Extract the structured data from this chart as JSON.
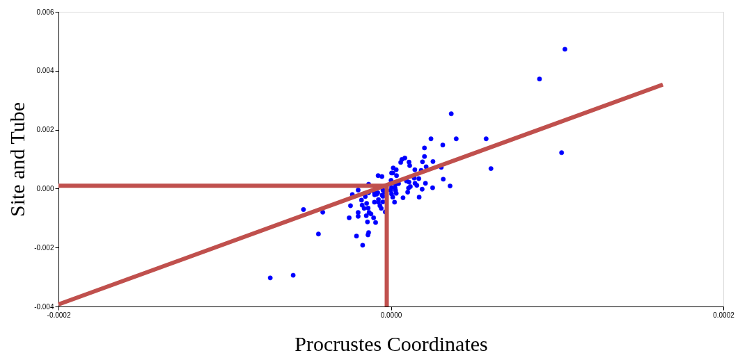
{
  "chart_data": {
    "type": "scatter",
    "xlabel": "Procrustes Coordinates",
    "ylabel": "Site and Tube",
    "xlim": [
      -0.0002,
      0.0002
    ],
    "ylim": [
      -0.004,
      0.006
    ],
    "xticks": [
      {
        "value": -0.0002,
        "label": "-0.0002"
      },
      {
        "value": 0,
        "label": "0.0000"
      },
      {
        "value": 0.0002,
        "label": "0.0002"
      }
    ],
    "yticks": [
      {
        "value": -0.004,
        "label": "-0.004"
      },
      {
        "value": -0.002,
        "label": "-0.002"
      },
      {
        "value": 0,
        "label": "0.000"
      },
      {
        "value": 0.002,
        "label": "0.002"
      },
      {
        "value": 0.004,
        "label": "0.004"
      },
      {
        "value": 0.006,
        "label": "0.006"
      }
    ],
    "grid": false,
    "series": [
      {
        "type": "scatter",
        "color": "#0000ff",
        "marker": "circle",
        "x": [
          3.63e-05,
          2.41e-05,
          3.93e-05,
          5.73e-05,
          3.12e-05,
          2.02e-05,
          2.02e-05,
          8.4e-06,
          6.6e-06,
          5.9e-06,
          1.09e-05,
          1.9e-05,
          2.53e-05,
          1.13e-05,
          2.12e-05,
          3.03e-05,
          6.02e-05,
          1.4e-06,
          3.2e-06,
          1.44e-05,
          1.82e-05,
          4e-07,
          1.2e-06,
          -7.7e-06,
          -5.4e-06,
          3.4e-06,
          1.4e-05,
          1.68e-05,
          1e-07,
          3.15e-05,
          9.4e-06,
          1.09e-05,
          1.45e-05,
          1.56e-05,
          2.08e-05,
          -1.34e-05,
          4.6e-06,
          2.8e-06,
          3.56e-05,
          2.51e-05,
          1.17e-05,
          1.06e-05,
          1.88e-05,
          2.5e-06,
          4e-07,
          -1.97e-05,
          -4.8e-06,
          -1e-07,
          2.8e-06,
          -2.32e-05,
          -1.34e-05,
          -9.9e-06,
          -7.9e-06,
          -3.7e-06,
          -9.8e-06,
          -8.6e-06,
          -5.3e-06,
          4e-07,
          3.2e-06,
          1.01e-05,
          -1.54e-05,
          -4.8e-06,
          1.1e-06,
          1.7e-05,
          7.3e-06,
          -1.77e-05,
          -7.5e-06,
          -1.46e-05,
          -9.9e-06,
          -7.5e-06,
          -4.8e-06,
          2.2e-06,
          -2.43e-05,
          -1.73e-05,
          -6.6e-06,
          -1.61e-05,
          -1.37e-05,
          -5.8e-06,
          -3.4e-06,
          -1.97e-05,
          -1.31e-05,
          -1.2e-05,
          -1.97e-05,
          -2.51e-05,
          -1.48e-05,
          -1.04e-05,
          -1.41e-05,
          -9.2e-06,
          -1.34e-05,
          -1.38e-05,
          -2.07e-05,
          -1.7e-05,
          0.0001047,
          8.94e-05,
          0.0001027,
          -5.26e-05,
          -4.1e-05,
          -4.36e-05,
          -7.26e-05,
          -5.88e-05
        ],
        "values": [
          0.00254,
          0.00169,
          0.00169,
          0.00169,
          0.00148,
          0.00138,
          0.00109,
          0.00104,
          0.00099,
          0.00089,
          0.0009,
          0.00091,
          0.00092,
          0.00078,
          0.00074,
          0.00072,
          0.00068,
          0.0007,
          0.00064,
          0.00064,
          0.00062,
          0.00053,
          0.00053,
          0.00044,
          0.00041,
          0.00044,
          0.00036,
          0.00034,
          0.00028,
          0.00032,
          0.00026,
          0.00022,
          0.00018,
          0.00011,
          0.00018,
          0.00015,
          0.00017,
          0.00014,
          9e-05,
          3e-05,
          7e-05,
          2e-05,
          -2e-05,
          2e-05,
          4e-05,
          -5e-05,
          -5e-05,
          -6e-05,
          -6e-05,
          -0.0002,
          -0.00014,
          -0.00014,
          -0.00014,
          -0.00012,
          -0.00021,
          -0.00019,
          -0.00022,
          -0.00018,
          -0.00016,
          -0.00012,
          -0.00027,
          -0.00026,
          -0.00029,
          -0.00029,
          -0.00031,
          -0.00039,
          -0.00037,
          -0.0005,
          -0.00046,
          -0.00046,
          -0.00045,
          -0.00046,
          -0.00058,
          -0.00056,
          -0.00058,
          -0.00067,
          -0.00066,
          -0.00067,
          -0.00079,
          -0.00081,
          -0.00081,
          -0.00086,
          -0.00094,
          -0.00099,
          -0.00092,
          -0.00099,
          -0.00113,
          -0.00115,
          -0.00149,
          -0.00157,
          -0.00161,
          -0.00192,
          0.00473,
          0.00372,
          0.00122,
          -0.00071,
          -0.0008,
          -0.00154,
          -0.00303,
          -0.00294
        ]
      },
      {
        "type": "line",
        "color": "#c0504d",
        "line_style": "solid",
        "marker": "none",
        "x": [
          -0.0002,
          -2.5e-06,
          -2.5e-06
        ],
        "values": [
          0.0001,
          0.0001,
          -0.004
        ]
      },
      {
        "type": "line",
        "color": "#c0504d",
        "line_style": "solid",
        "marker": "none",
        "x": [
          -0.0002,
          0.0001636
        ],
        "values": [
          -0.00393,
          0.00353
        ]
      }
    ]
  }
}
